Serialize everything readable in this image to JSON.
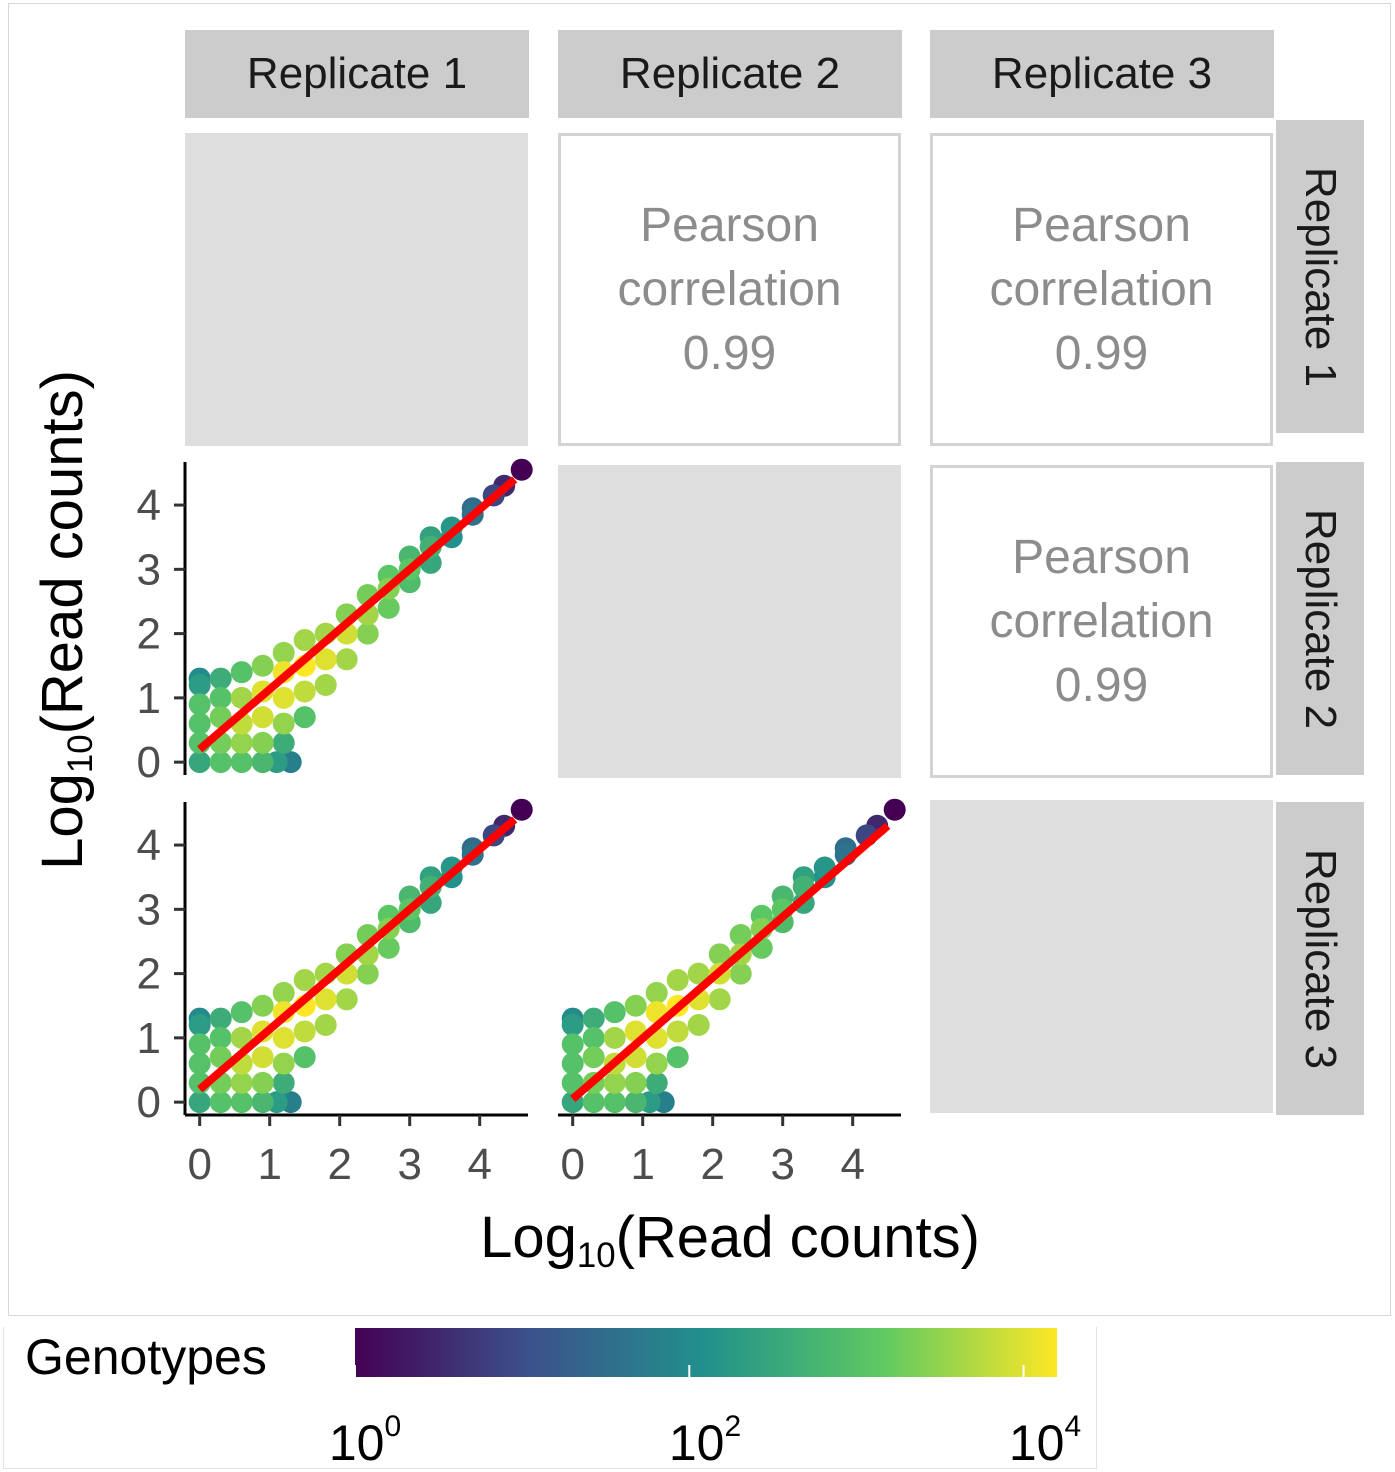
{
  "chart_data": {
    "type": "scatter",
    "layout": "pairs-matrix",
    "columns": [
      "Replicate 1",
      "Replicate 2",
      "Replicate 3"
    ],
    "rows": [
      "Replicate 1",
      "Replicate 2",
      "Replicate 3"
    ],
    "xlabel_main": "Log",
    "xlabel_sub": "10",
    "xlabel_rest": "(Read counts)",
    "ylabel_main": "Log",
    "ylabel_sub": "10",
    "ylabel_rest": "(Read counts)",
    "xlim": [
      -0.21,
      4.69
    ],
    "ylim": [
      -0.2,
      4.67
    ],
    "ticks": [
      "0",
      "1",
      "2",
      "3",
      "4"
    ],
    "tick_values": [
      0,
      1,
      2,
      3,
      4
    ],
    "correlations": [
      {
        "label": "Pearson correlation",
        "value": "0.99",
        "pair": "Replicate 2 vs Replicate 1"
      },
      {
        "label": "Pearson correlation",
        "value": "0.99",
        "pair": "Replicate 3 vs Replicate 1"
      },
      {
        "label": "Pearson correlation",
        "value": "0.99",
        "pair": "Replicate 3 vs Replicate 2"
      }
    ],
    "point_fields": [
      "x",
      "y",
      "log10_genotype_count"
    ],
    "points": [
      [
        0,
        0,
        2.5
      ],
      [
        0,
        0.3,
        3
      ],
      [
        0,
        0.6,
        3
      ],
      [
        0,
        0.9,
        3
      ],
      [
        0,
        1.2,
        2.3
      ],
      [
        0,
        1.3,
        2
      ],
      [
        0.3,
        0,
        3
      ],
      [
        0.6,
        0,
        3
      ],
      [
        0.9,
        0,
        2.8
      ],
      [
        1.1,
        0,
        2.3
      ],
      [
        1.3,
        0,
        1.8
      ],
      [
        0.3,
        0.3,
        3.3
      ],
      [
        0.3,
        0.7,
        3.3
      ],
      [
        0.3,
        1.0,
        3
      ],
      [
        0.3,
        1.3,
        2.6
      ],
      [
        0.6,
        0.3,
        3.5
      ],
      [
        0.6,
        0.6,
        3.8
      ],
      [
        0.6,
        1.0,
        3.6
      ],
      [
        0.6,
        1.4,
        3
      ],
      [
        0.9,
        0.3,
        3.4
      ],
      [
        0.9,
        0.7,
        3.9
      ],
      [
        0.9,
        1.1,
        4
      ],
      [
        0.9,
        1.5,
        3.4
      ],
      [
        1.2,
        0.3,
        2.6
      ],
      [
        1.2,
        0.6,
        3.5
      ],
      [
        1.2,
        1.0,
        4
      ],
      [
        1.2,
        1.4,
        4.1
      ],
      [
        1.2,
        1.7,
        3.5
      ],
      [
        1.5,
        0.7,
        3
      ],
      [
        1.5,
        1.1,
        3.8
      ],
      [
        1.5,
        1.5,
        4.2
      ],
      [
        1.5,
        1.9,
        3.6
      ],
      [
        1.8,
        1.2,
        3.6
      ],
      [
        1.8,
        1.6,
        4
      ],
      [
        1.8,
        2.0,
        3.6
      ],
      [
        2.1,
        1.6,
        3.6
      ],
      [
        2.1,
        2.0,
        3.9
      ],
      [
        2.1,
        2.3,
        3.4
      ],
      [
        2.4,
        2.0,
        3.4
      ],
      [
        2.4,
        2.3,
        3.6
      ],
      [
        2.4,
        2.6,
        3.3
      ],
      [
        2.7,
        2.4,
        3.2
      ],
      [
        2.7,
        2.7,
        3.4
      ],
      [
        2.7,
        2.9,
        3.1
      ],
      [
        3.0,
        2.8,
        2.9
      ],
      [
        3.0,
        3.0,
        3.1
      ],
      [
        3.0,
        3.2,
        2.8
      ],
      [
        3.3,
        3.1,
        2.5
      ],
      [
        3.3,
        3.35,
        2.7
      ],
      [
        3.3,
        3.5,
        2.4
      ],
      [
        3.6,
        3.5,
        2.1
      ],
      [
        3.6,
        3.65,
        2.2
      ],
      [
        3.9,
        3.85,
        1.6
      ],
      [
        3.9,
        3.95,
        1.5
      ],
      [
        4.2,
        4.15,
        0.9
      ],
      [
        4.35,
        4.3,
        0.5
      ],
      [
        4.6,
        4.55,
        0
      ]
    ],
    "panels": [
      {
        "row": "Replicate 2",
        "col": "Replicate 1",
        "fit": {
          "x": [
            0,
            4.5
          ],
          "y": [
            0.2,
            4.4
          ]
        }
      },
      {
        "row": "Replicate 3",
        "col": "Replicate 1",
        "fit": {
          "x": [
            0,
            4.5
          ],
          "y": [
            0.2,
            4.4
          ]
        }
      },
      {
        "row": "Replicate 3",
        "col": "Replicate 2",
        "fit": {
          "x": [
            0,
            4.5
          ],
          "y": [
            0.05,
            4.3
          ]
        }
      }
    ],
    "fit_color": "#ff0000",
    "colorbar": {
      "title": "Genotypes",
      "range_log10": [
        0,
        4.2
      ],
      "ticks": [
        {
          "base": "10",
          "exp": "0",
          "value": 0
        },
        {
          "base": "10",
          "exp": "2",
          "value": 2
        },
        {
          "base": "10",
          "exp": "4",
          "value": 4
        }
      ],
      "palette": "viridis"
    }
  }
}
